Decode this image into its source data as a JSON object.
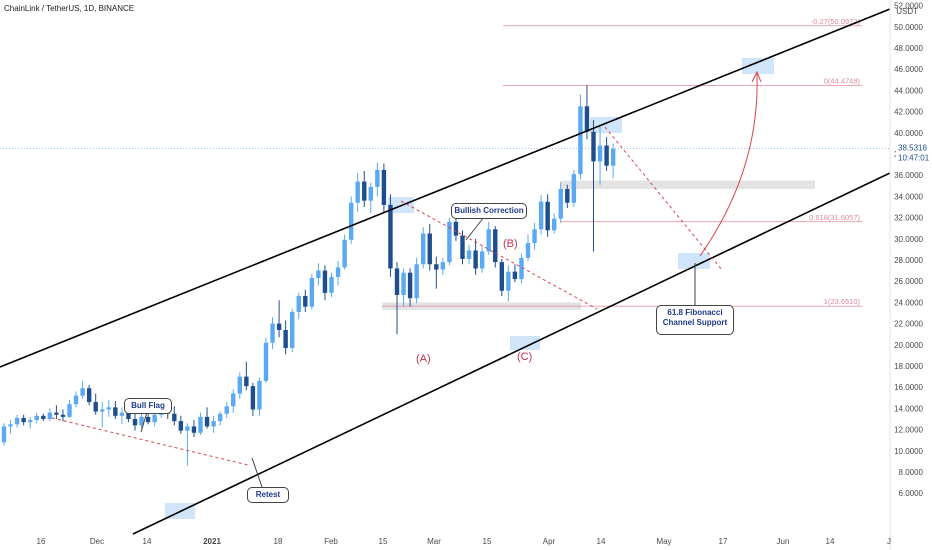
{
  "header": {
    "title": "ChainLink / TetherUS, 1D, BINANCE"
  },
  "axis": {
    "currency": "USDT"
  },
  "current_price": {
    "value": "38.5316",
    "countdown": "10:47:01"
  },
  "callouts": {
    "bull_flag": "Bull Flag",
    "retest": "Retest",
    "bullish_correction": "Bullish Correction",
    "fib_support_line1": "61.8 Fibonacci",
    "fib_support_line2": "Channel Support"
  },
  "waves": {
    "a": "(A)",
    "b": "(B)",
    "c": "(C)"
  },
  "fib_levels": [
    {
      "label": "-0.27(50.0972)",
      "price": 50.0972
    },
    {
      "label": "0(44.4748)",
      "price": 44.4748
    },
    {
      "label": "0.618(31.6057)",
      "price": 31.6057
    },
    {
      "label": "1(23.6510)",
      "price": 23.651
    }
  ],
  "colors": {
    "up": "#5aa9f2",
    "down": "#1f4e8f",
    "fib": "#e08a9a",
    "trend": "#d9434f",
    "channel": "#000000"
  },
  "chart_data": {
    "type": "candlestick",
    "title": "ChainLink / TetherUS, 1D, BINANCE",
    "y_unit": "USDT",
    "ylim": [
      6,
      56
    ],
    "y_ticks": [
      "54.0000",
      "52.0000",
      "50.0000",
      "48.0000",
      "46.0000",
      "44.0000",
      "42.0000",
      "40.0000",
      "38.0000",
      "36.0000",
      "34.0000",
      "32.0000",
      "30.0000",
      "28.0000",
      "26.0000",
      "24.0000",
      "22.0000",
      "20.0000",
      "18.0000",
      "16.0000",
      "14.0000",
      "12.0000",
      "10.0000",
      "8.0000",
      "6.0000"
    ],
    "x_ticks": [
      "16",
      "Dec",
      "14",
      "2021",
      "18",
      "Feb",
      "15",
      "Mar",
      "15",
      "Apr",
      "14",
      "May",
      "17",
      "Jun",
      "14",
      "J"
    ],
    "current_price": 38.5316,
    "series": [
      {
        "values": [
          [
            10.8,
            12.6,
            10.5,
            12.3
          ],
          [
            12.3,
            12.9,
            11.6,
            12.5
          ],
          [
            12.5,
            13.4,
            12.2,
            13.1
          ],
          [
            13.1,
            13.4,
            12.4,
            12.7
          ],
          [
            12.7,
            13.2,
            12.1,
            12.9
          ],
          [
            12.9,
            13.6,
            12.6,
            13.3
          ],
          [
            13.3,
            13.5,
            12.8,
            13.0
          ],
          [
            13.0,
            14.0,
            12.8,
            13.6
          ],
          [
            13.6,
            14.3,
            13.0,
            13.4
          ],
          [
            13.4,
            13.9,
            12.8,
            13.2
          ],
          [
            13.2,
            14.8,
            13.1,
            14.4
          ],
          [
            14.4,
            15.6,
            14.1,
            15.2
          ],
          [
            15.2,
            16.6,
            14.9,
            15.9
          ],
          [
            15.9,
            16.2,
            14.3,
            14.6
          ],
          [
            14.6,
            15.4,
            13.4,
            13.7
          ],
          [
            13.7,
            14.6,
            12.2,
            13.9
          ],
          [
            13.9,
            14.8,
            13.2,
            14.1
          ],
          [
            14.1,
            14.7,
            13.0,
            13.3
          ],
          [
            13.3,
            14.1,
            12.5,
            13.6
          ],
          [
            13.6,
            14.4,
            12.7,
            13.0
          ],
          [
            13.0,
            13.7,
            11.9,
            12.4
          ],
          [
            12.4,
            13.6,
            12.1,
            13.2
          ],
          [
            13.2,
            14.0,
            12.5,
            12.7
          ],
          [
            12.7,
            13.6,
            12.3,
            13.4
          ],
          [
            13.4,
            14.7,
            13.1,
            14.2
          ],
          [
            14.2,
            14.4,
            13.0,
            13.5
          ],
          [
            13.5,
            14.2,
            12.4,
            12.8
          ],
          [
            12.8,
            13.3,
            11.6,
            11.9
          ],
          [
            11.9,
            12.6,
            8.6,
            12.3
          ],
          [
            12.3,
            12.9,
            11.3,
            11.7
          ],
          [
            11.7,
            13.6,
            11.5,
            13.2
          ],
          [
            13.2,
            14.1,
            12.1,
            12.3
          ],
          [
            12.3,
            13.3,
            11.7,
            12.8
          ],
          [
            12.8,
            13.7,
            12.4,
            13.5
          ],
          [
            13.5,
            14.6,
            13.1,
            14.2
          ],
          [
            14.2,
            15.8,
            13.6,
            15.4
          ],
          [
            15.4,
            17.4,
            14.9,
            17.0
          ],
          [
            17.0,
            18.4,
            15.7,
            16.1
          ],
          [
            16.1,
            16.4,
            13.3,
            13.9
          ],
          [
            13.9,
            16.9,
            13.3,
            16.6
          ],
          [
            16.6,
            20.7,
            16.4,
            20.2
          ],
          [
            20.2,
            22.6,
            19.6,
            22.0
          ],
          [
            22.0,
            24.2,
            20.7,
            21.4
          ],
          [
            21.4,
            22.3,
            19.1,
            19.7
          ],
          [
            19.7,
            23.4,
            19.3,
            23.1
          ],
          [
            23.1,
            24.9,
            22.4,
            24.6
          ],
          [
            24.6,
            25.2,
            23.1,
            23.6
          ],
          [
            23.6,
            26.7,
            23.3,
            26.3
          ],
          [
            26.3,
            27.7,
            25.6,
            27.0
          ],
          [
            27.0,
            27.5,
            24.2,
            24.9
          ],
          [
            24.9,
            26.8,
            24.5,
            26.4
          ],
          [
            26.4,
            27.9,
            25.6,
            27.3
          ],
          [
            27.3,
            30.4,
            27.1,
            29.9
          ],
          [
            29.9,
            34.0,
            29.5,
            33.4
          ],
          [
            33.4,
            36.2,
            32.5,
            35.4
          ],
          [
            35.4,
            36.4,
            33.0,
            33.6
          ],
          [
            33.6,
            35.3,
            32.4,
            34.9
          ],
          [
            34.9,
            37.2,
            34.0,
            36.5
          ],
          [
            36.5,
            37.1,
            32.5,
            33.2
          ],
          [
            33.2,
            34.2,
            26.4,
            27.2
          ],
          [
            27.2,
            27.8,
            21.0,
            24.7
          ],
          [
            24.7,
            27.2,
            23.6,
            26.8
          ],
          [
            26.8,
            27.2,
            23.6,
            24.4
          ],
          [
            24.4,
            28.2,
            23.9,
            27.6
          ],
          [
            27.6,
            31.1,
            27.2,
            30.5
          ],
          [
            30.5,
            31.4,
            27.0,
            27.6
          ],
          [
            27.6,
            28.3,
            25.3,
            27.1
          ],
          [
            27.1,
            28.2,
            26.6,
            27.8
          ],
          [
            27.8,
            32.0,
            27.5,
            31.6
          ],
          [
            31.6,
            31.9,
            29.8,
            30.3
          ],
          [
            30.3,
            30.8,
            27.6,
            28.1
          ],
          [
            28.1,
            29.4,
            27.6,
            28.9
          ],
          [
            28.9,
            30.0,
            26.6,
            27.2
          ],
          [
            27.2,
            29.3,
            26.8,
            28.8
          ],
          [
            28.8,
            31.6,
            28.5,
            30.9
          ],
          [
            30.9,
            31.2,
            27.3,
            27.8
          ],
          [
            27.8,
            28.1,
            24.6,
            25.1
          ],
          [
            25.1,
            27.5,
            24.1,
            26.9
          ],
          [
            26.9,
            27.6,
            25.9,
            26.2
          ],
          [
            26.2,
            28.6,
            25.8,
            28.2
          ],
          [
            28.2,
            30.4,
            27.9,
            29.6
          ],
          [
            29.6,
            31.5,
            29.0,
            30.9
          ],
          [
            30.9,
            34.1,
            30.4,
            33.5
          ],
          [
            33.5,
            34.2,
            30.2,
            30.8
          ],
          [
            30.8,
            32.4,
            30.5,
            31.9
          ],
          [
            31.9,
            35.3,
            31.5,
            34.7
          ],
          [
            34.7,
            35.1,
            32.9,
            33.4
          ],
          [
            33.4,
            36.5,
            33.0,
            36.1
          ],
          [
            36.1,
            43.6,
            35.6,
            42.5
          ],
          [
            42.5,
            44.5,
            39.4,
            40.1
          ],
          [
            40.1,
            41.2,
            28.8,
            37.3
          ],
          [
            37.3,
            40.6,
            35.1,
            38.8
          ],
          [
            38.8,
            39.6,
            36.4,
            36.9
          ],
          [
            36.9,
            39.0,
            35.7,
            38.5
          ]
        ]
      }
    ]
  }
}
